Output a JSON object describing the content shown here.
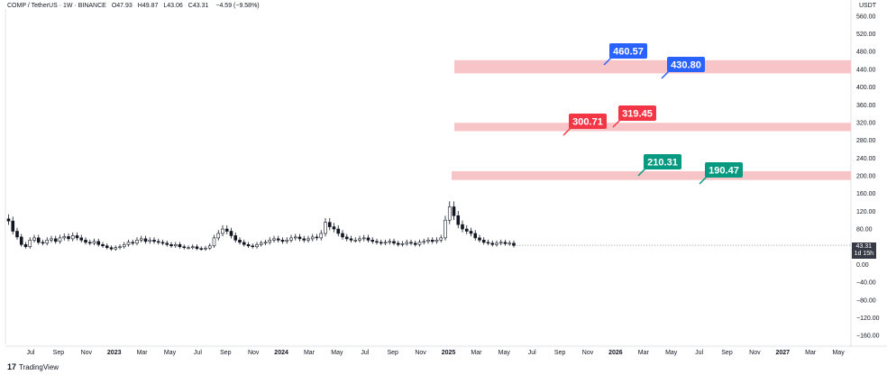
{
  "header": {
    "symbol": "COMP / TetherUS · 1W · BINANCE",
    "open": "O47.93",
    "high": "H49.87",
    "low": "L43.06",
    "close": "C43.31",
    "change": "−4.59 (−9.58%)"
  },
  "currency_label": "USDT",
  "price_tag": {
    "price": "43.31",
    "countdown": "1d 15h"
  },
  "logo": {
    "mark": "17",
    "text": "TradingView"
  },
  "colors": {
    "zone": "#f7c5c8",
    "callout_blue": "#2962ff",
    "callout_red": "#f23645",
    "callout_teal": "#089981",
    "up": "#ffffff",
    "down": "#131722",
    "last_price_line": "#9598a1"
  },
  "chart_data": {
    "type": "candlestick",
    "ylim": [
      -180,
      580
    ],
    "yticks": [
      "560.00",
      "520.00",
      "480.00",
      "440.00",
      "400.00",
      "360.00",
      "320.00",
      "280.00",
      "240.00",
      "200.00",
      "160.00",
      "120.00",
      "80.00",
      "40.00",
      "0.00",
      "−40.00",
      "−80.00",
      "−120.00",
      "−160.00"
    ],
    "ytick_values": [
      560,
      520,
      480,
      440,
      400,
      360,
      320,
      280,
      240,
      200,
      160,
      120,
      80,
      40,
      0,
      -40,
      -80,
      -120,
      -160
    ],
    "xticks": [
      {
        "label": "Jul",
        "bold": false
      },
      {
        "label": "Sep",
        "bold": false
      },
      {
        "label": "Nov",
        "bold": false
      },
      {
        "label": "2023",
        "bold": true
      },
      {
        "label": "Mar",
        "bold": false
      },
      {
        "label": "May",
        "bold": false
      },
      {
        "label": "Jul",
        "bold": false
      },
      {
        "label": "Sep",
        "bold": false
      },
      {
        "label": "Nov",
        "bold": false
      },
      {
        "label": "2024",
        "bold": true
      },
      {
        "label": "Mar",
        "bold": false
      },
      {
        "label": "May",
        "bold": false
      },
      {
        "label": "Jul",
        "bold": false
      },
      {
        "label": "Sep",
        "bold": false
      },
      {
        "label": "Nov",
        "bold": false
      },
      {
        "label": "2025",
        "bold": true
      },
      {
        "label": "Mar",
        "bold": false
      },
      {
        "label": "May",
        "bold": false
      },
      {
        "label": "Jul",
        "bold": false
      },
      {
        "label": "Sep",
        "bold": false
      },
      {
        "label": "Nov",
        "bold": false
      },
      {
        "label": "2026",
        "bold": true
      },
      {
        "label": "Mar",
        "bold": false
      },
      {
        "label": "May",
        "bold": false
      },
      {
        "label": "Jul",
        "bold": false
      },
      {
        "label": "Sep",
        "bold": false
      },
      {
        "label": "Nov",
        "bold": false
      },
      {
        "label": "2027",
        "bold": true
      },
      {
        "label": "Mar",
        "bold": false
      },
      {
        "label": "May",
        "bold": false
      }
    ],
    "zones": [
      {
        "low": 430.8,
        "high": 460.57
      },
      {
        "low": 300.71,
        "high": 319.45
      },
      {
        "low": 190.47,
        "high": 210.31
      }
    ],
    "callouts": [
      {
        "label": "460.57",
        "value": 460.57,
        "color": "blue"
      },
      {
        "label": "430.80",
        "value": 430.8,
        "color": "blue"
      },
      {
        "label": "300.71",
        "value": 300.71,
        "color": "red"
      },
      {
        "label": "319.45",
        "value": 319.45,
        "color": "red"
      },
      {
        "label": "210.31",
        "value": 210.31,
        "color": "teal"
      },
      {
        "label": "190.47",
        "value": 190.47,
        "color": "teal"
      }
    ],
    "last_price": 43.31,
    "closes": [
      98,
      75,
      62,
      45,
      40,
      55,
      60,
      50,
      48,
      55,
      58,
      52,
      60,
      63,
      58,
      65,
      60,
      55,
      50,
      48,
      52,
      45,
      42,
      38,
      35,
      38,
      40,
      45,
      50,
      48,
      55,
      58,
      52,
      55,
      52,
      50,
      48,
      45,
      42,
      45,
      40,
      38,
      38,
      40,
      36,
      35,
      37,
      42,
      60,
      70,
      80,
      75,
      65,
      55,
      50,
      45,
      42,
      40,
      45,
      48,
      50,
      55,
      58,
      55,
      52,
      55,
      60,
      62,
      58,
      55,
      58,
      62,
      60,
      70,
      95,
      85,
      80,
      70,
      62,
      58,
      55,
      55,
      58,
      60,
      55,
      52,
      50,
      48,
      50,
      52,
      48,
      45,
      47,
      50,
      48,
      45,
      50,
      52,
      55,
      52,
      55,
      60,
      100,
      130,
      110,
      90,
      80,
      75,
      70,
      60,
      55,
      50,
      48,
      45,
      48,
      50,
      47,
      48,
      43
    ]
  }
}
